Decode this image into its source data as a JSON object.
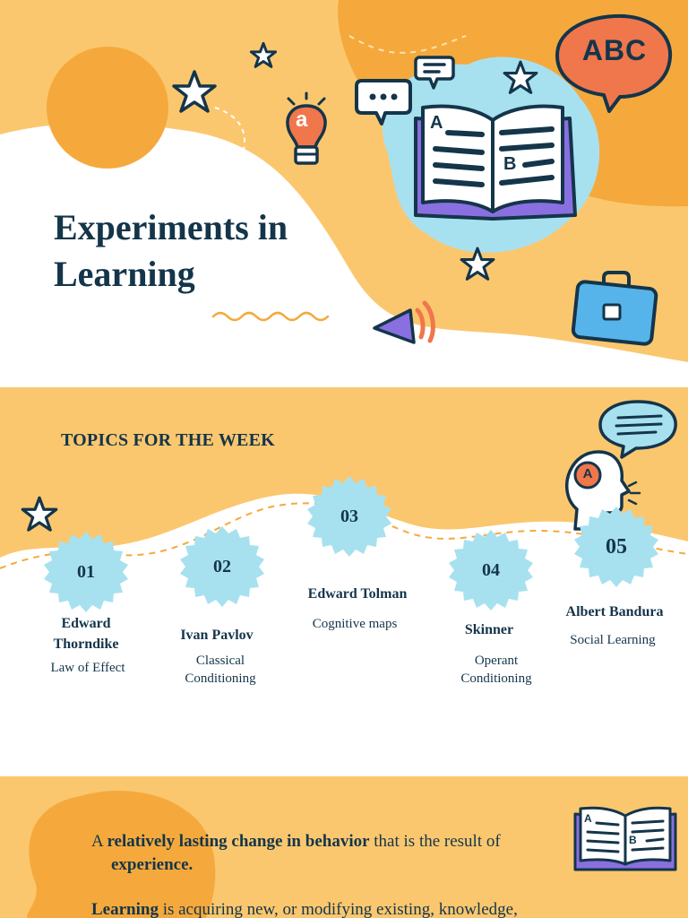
{
  "hero": {
    "title_line1": "Experiments in",
    "title_line2": "Learning",
    "speech_bubble_text": "ABC",
    "book_letter_a": "A",
    "book_letter_b": "B",
    "bulb_letter": "a"
  },
  "topics": {
    "heading": "TOPICS FOR THE WEEK",
    "head_letter": "A",
    "items": [
      {
        "number": "01",
        "name_line1": "Edward",
        "name_line2": "Thorndike",
        "desc_line1": "Law of Effect",
        "desc_line2": ""
      },
      {
        "number": "02",
        "name_line1": "Ivan Pavlov",
        "name_line2": "",
        "desc_line1": "Classical",
        "desc_line2": "Conditioning"
      },
      {
        "number": "03",
        "name_line1": "Edward Tolman",
        "name_line2": "",
        "desc_line1": "Cognitive maps",
        "desc_line2": ""
      },
      {
        "number": "04",
        "name_line1": "Skinner",
        "name_line2": "",
        "desc_line1": "Operant",
        "desc_line2": "Conditioning"
      },
      {
        "number": "05",
        "name_line1": "Albert Bandura",
        "name_line2": "",
        "desc_line1": "Social Learning",
        "desc_line2": ""
      }
    ]
  },
  "definition": {
    "p1_a": "A ",
    "p1_b": "relatively lasting change in behavior",
    "p1_c": " that is the result of",
    "p1_d": "experience.",
    "p2_a": "Learning",
    "p2_b": " is acquiring new, or modifying existing, knowledge,",
    "book_letter_a": "A",
    "book_letter_b": "B"
  },
  "colors": {
    "orange_light": "#fbc76e",
    "orange_dark": "#f5a93c",
    "blue_light": "#a7e1f0",
    "navy": "#14354a",
    "purple": "#8a6fe0",
    "red_orange": "#f0764b"
  }
}
